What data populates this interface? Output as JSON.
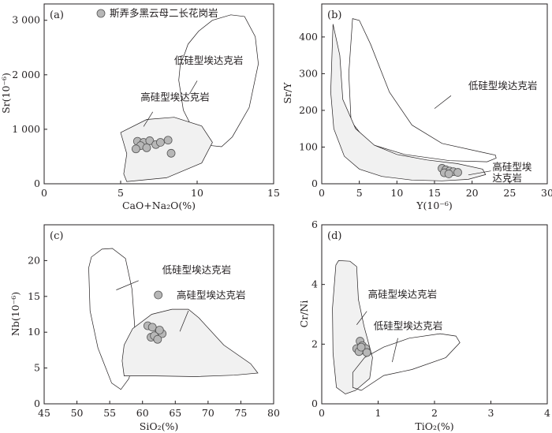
{
  "legend": {
    "label": "斯弄多黑云母二长花岗岩",
    "marker_color": "#b7b7b7"
  },
  "colors": {
    "high_si_fill": "#f1f1f1",
    "low_si_fill": "none",
    "line": "#231f20"
  },
  "chart_data": [
    {
      "id": "a",
      "type": "scatter",
      "panel_label": "(a)",
      "xlabel": "CaO+Na₂O(%)",
      "ylabel": "Sr(10⁻⁶)",
      "xlim": [
        0,
        15
      ],
      "ylim": [
        0,
        3300
      ],
      "xticks": [
        0,
        5,
        10,
        15
      ],
      "xtick_labels": [
        "0",
        "5",
        "10",
        "15"
      ],
      "yticks": [
        0,
        1000,
        2000,
        3000
      ],
      "ytick_labels": [
        "0",
        "1 000",
        "2 000",
        "3 000"
      ],
      "points": [
        [
          6.1,
          780
        ],
        [
          6.5,
          760
        ],
        [
          6.9,
          790
        ],
        [
          7.3,
          720
        ],
        [
          6.3,
          700
        ],
        [
          6.7,
          660
        ],
        [
          7.6,
          760
        ],
        [
          8.1,
          800
        ],
        [
          6.0,
          640
        ],
        [
          8.3,
          560
        ]
      ],
      "fields": [
        {
          "name": "低硅型埃达克岩",
          "fill": false,
          "polygon": [
            [
              9.2,
              2400
            ],
            [
              9.4,
              2560
            ],
            [
              10.1,
              2800
            ],
            [
              11.0,
              3000
            ],
            [
              12.2,
              3100
            ],
            [
              13.1,
              3070
            ],
            [
              13.8,
              2700
            ],
            [
              14.0,
              2200
            ],
            [
              13.4,
              1400
            ],
            [
              12.3,
              860
            ],
            [
              11.6,
              680
            ],
            [
              10.9,
              700
            ],
            [
              9.8,
              960
            ],
            [
              9.1,
              1350
            ],
            [
              8.8,
              1900
            ],
            [
              8.9,
              2200
            ]
          ],
          "label_at": [
            8.5,
            2200
          ],
          "leader": [
            [
              10.0,
              1890
            ],
            [
              9.5,
              1650
            ]
          ]
        },
        {
          "name": "高硅型埃达克岩",
          "fill": true,
          "polygon": [
            [
              5.0,
              940
            ],
            [
              6.7,
              1180
            ],
            [
              8.5,
              1220
            ],
            [
              10.3,
              1060
            ],
            [
              11.0,
              760
            ],
            [
              10.3,
              380
            ],
            [
              8.0,
              110
            ],
            [
              5.4,
              40
            ],
            [
              5.2,
              180
            ],
            [
              5.4,
              550
            ]
          ],
          "label_at": [
            6.3,
            1530
          ],
          "leader": [
            [
              7.1,
              1320
            ],
            [
              6.5,
              1050
            ]
          ]
        }
      ]
    },
    {
      "id": "b",
      "type": "scatter",
      "panel_label": "(b)",
      "xlabel": "Y(10⁻⁶)",
      "ylabel": "Sr/Y",
      "xlim": [
        0,
        30
      ],
      "ylim": [
        0,
        490
      ],
      "xticks": [
        0,
        5,
        10,
        15,
        20,
        25,
        30
      ],
      "xtick_labels": [
        "0",
        "5",
        "10",
        "15",
        "20",
        "25",
        "30"
      ],
      "yticks": [
        0,
        100,
        200,
        300,
        400
      ],
      "ytick_labels": [
        "0",
        "100",
        "200",
        "300",
        "400"
      ],
      "points": [
        [
          16.0,
          42
        ],
        [
          16.5,
          38
        ],
        [
          17.0,
          35
        ],
        [
          16.3,
          30
        ],
        [
          17.5,
          33
        ],
        [
          18.1,
          31
        ],
        [
          16.9,
          27
        ]
      ],
      "fields": [
        {
          "name": "低硅型埃达克岩",
          "fill": false,
          "polygon": [
            [
              4.1,
              450
            ],
            [
              3.6,
              300
            ],
            [
              3.9,
              170
            ],
            [
              6.2,
              110
            ],
            [
              11.0,
              80
            ],
            [
              17.0,
              63
            ],
            [
              22.0,
              60
            ],
            [
              23.2,
              70
            ],
            [
              23.1,
              78
            ],
            [
              21.5,
              85
            ],
            [
              16.0,
              110
            ],
            [
              12.0,
              160
            ],
            [
              9.0,
              250
            ],
            [
              6.5,
              380
            ],
            [
              5.0,
              445
            ]
          ],
          "label_at": [
            19.5,
            258
          ],
          "leader": [
            [
              17.2,
              240
            ],
            [
              15.0,
              205
            ]
          ]
        },
        {
          "name": "高硅型埃达克岩",
          "fill": true,
          "polygon": [
            [
              1.5,
              435
            ],
            [
              1.2,
              250
            ],
            [
              1.6,
              150
            ],
            [
              3.0,
              75
            ],
            [
              5.0,
              40
            ],
            [
              8.0,
              20
            ],
            [
              12.0,
              10
            ],
            [
              16.0,
              8
            ],
            [
              19.5,
              12
            ],
            [
              21.8,
              25
            ],
            [
              21.4,
              40
            ],
            [
              18.0,
              55
            ],
            [
              14.0,
              65
            ],
            [
              10.0,
              80
            ],
            [
              7.0,
              105
            ],
            [
              4.5,
              150
            ],
            [
              2.8,
              230
            ],
            [
              2.4,
              350
            ]
          ],
          "label_at": [
            22.7,
            36
          ],
          "leader": [
            [
              22.5,
              35
            ],
            [
              19.5,
              24
            ]
          ],
          "label_lines": [
            "高硅型埃",
            "达克岩"
          ]
        }
      ]
    },
    {
      "id": "c",
      "type": "scatter",
      "panel_label": "(c)",
      "xlabel": "SiO₂(%)",
      "ylabel": "Nb(10⁻⁶)",
      "xlim": [
        45,
        80
      ],
      "ylim": [
        0,
        25
      ],
      "xticks": [
        45,
        50,
        55,
        60,
        65,
        70,
        75,
        80
      ],
      "xtick_labels": [
        "45",
        "50",
        "55",
        "60",
        "65",
        "70",
        "75",
        "80"
      ],
      "yticks": [
        0,
        5,
        10,
        15,
        20
      ],
      "ytick_labels": [
        "0",
        "5",
        "10",
        "15",
        "20"
      ],
      "points": [
        [
          62.4,
          15.2
        ],
        [
          60.8,
          10.9
        ],
        [
          61.5,
          10.7
        ],
        [
          62.5,
          10.0
        ],
        [
          63.0,
          9.8
        ],
        [
          61.3,
          9.3
        ],
        [
          61.8,
          9.5
        ],
        [
          62.3,
          9.0
        ],
        [
          62.6,
          10.3
        ]
      ],
      "fields": [
        {
          "name": "低硅型埃达克岩",
          "fill": false,
          "polygon": [
            [
              51.8,
              19.0
            ],
            [
              52.2,
              20.5
            ],
            [
              53.8,
              21.6
            ],
            [
              55.4,
              21.7
            ],
            [
              57.4,
              20.3
            ],
            [
              58.4,
              16.0
            ],
            [
              58.8,
              11.0
            ],
            [
              58.8,
              6.0
            ],
            [
              57.9,
              3.5
            ],
            [
              56.7,
              2.0
            ],
            [
              55.3,
              2.9
            ],
            [
              53.2,
              7.8
            ],
            [
              52.0,
              13.0
            ]
          ],
          "label_at": [
            63.0,
            18.2
          ],
          "leader": [
            [
              59.4,
              17.2
            ],
            [
              56.0,
              15.9
            ]
          ]
        },
        {
          "name": "高硅型埃达克岩",
          "fill": true,
          "polygon": [
            [
              56.9,
              6.0
            ],
            [
              57.2,
              8.2
            ],
            [
              58.5,
              10.5
            ],
            [
              61.4,
              12.5
            ],
            [
              64.5,
              13.2
            ],
            [
              67.0,
              13.2
            ],
            [
              68.6,
              12.0
            ],
            [
              72.4,
              8.2
            ],
            [
              76.5,
              5.6
            ],
            [
              77.6,
              4.3
            ],
            [
              74.0,
              4.0
            ],
            [
              68.0,
              3.8
            ],
            [
              62.0,
              3.9
            ],
            [
              57.2,
              3.9
            ]
          ],
          "label_at": [
            65.2,
            14.7
          ],
          "leader": [
            [
              67.0,
              13.0
            ],
            [
              65.7,
              10.1
            ]
          ]
        }
      ]
    },
    {
      "id": "d",
      "type": "scatter",
      "panel_label": "(d)",
      "xlabel": "TiO₂(%)",
      "ylabel": "Cr/Ni",
      "xlim": [
        0,
        4
      ],
      "ylim": [
        0,
        6
      ],
      "xticks": [
        0,
        1,
        2,
        3,
        4
      ],
      "xtick_labels": [
        "0",
        "1",
        "2",
        "3",
        "4"
      ],
      "yticks": [
        0,
        2,
        4,
        6
      ],
      "ytick_labels": [
        "0",
        "2",
        "4",
        "6"
      ],
      "points": [
        [
          0.68,
          2.1
        ],
        [
          0.72,
          1.95
        ],
        [
          0.62,
          1.85
        ],
        [
          0.74,
          1.8
        ],
        [
          0.66,
          1.75
        ],
        [
          0.78,
          1.85
        ],
        [
          0.8,
          1.72
        ],
        [
          0.7,
          1.9
        ]
      ],
      "fields": [
        {
          "name": "高硅型埃达克岩",
          "fill": true,
          "polygon": [
            [
              0.25,
              4.65
            ],
            [
              0.3,
              4.8
            ],
            [
              0.5,
              4.78
            ],
            [
              0.62,
              4.6
            ],
            [
              0.65,
              3.5
            ],
            [
              0.75,
              2.6
            ],
            [
              0.9,
              1.55
            ],
            [
              0.85,
              0.85
            ],
            [
              0.6,
              0.45
            ],
            [
              0.42,
              0.33
            ],
            [
              0.26,
              0.55
            ],
            [
              0.2,
              1.7
            ],
            [
              0.19,
              3.2
            ]
          ],
          "label_at": [
            0.82,
            3.55
          ],
          "leader": [
            [
              0.8,
              3.1
            ],
            [
              0.62,
              2.65
            ]
          ]
        },
        {
          "name": "低硅型埃达克岩",
          "fill": false,
          "polygon": [
            [
              0.55,
              1.05
            ],
            [
              0.76,
              1.55
            ],
            [
              1.1,
              1.9
            ],
            [
              1.55,
              2.2
            ],
            [
              2.1,
              2.35
            ],
            [
              2.38,
              2.27
            ],
            [
              2.45,
              2.05
            ],
            [
              2.2,
              1.55
            ],
            [
              1.6,
              1.15
            ],
            [
              1.1,
              0.95
            ],
            [
              0.7,
              0.45
            ],
            [
              0.55,
              0.55
            ]
          ],
          "label_at": [
            0.92,
            2.5
          ],
          "leader": [
            [
              1.35,
              2.2
            ],
            [
              1.25,
              1.4
            ]
          ]
        }
      ]
    }
  ]
}
